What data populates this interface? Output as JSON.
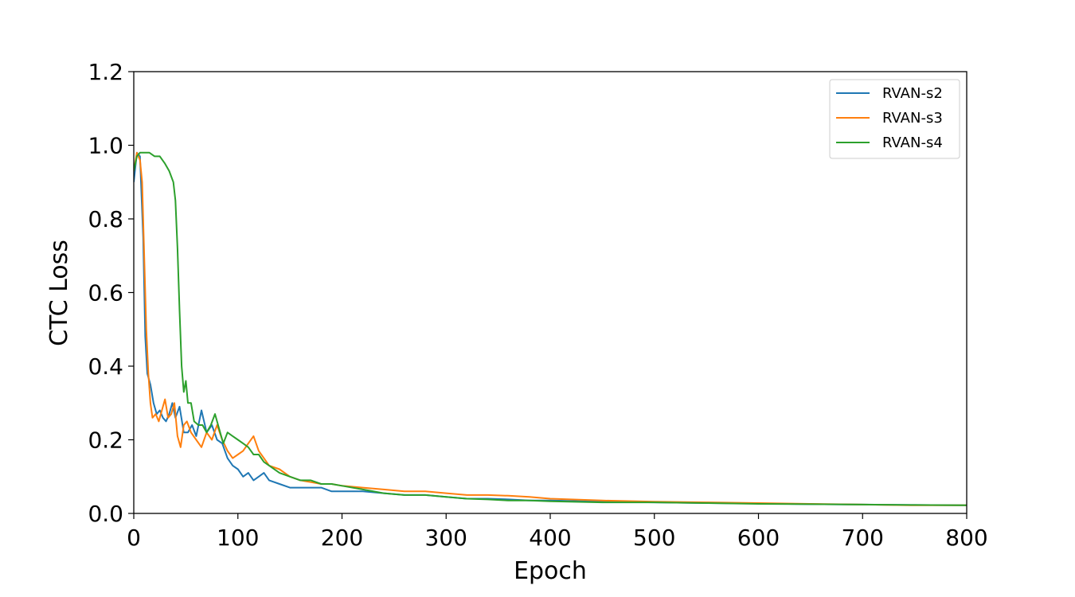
{
  "chart_data": {
    "type": "line",
    "title": "",
    "xlabel": "Epoch",
    "ylabel": "CTC Loss",
    "xlim": [
      0,
      800
    ],
    "ylim": [
      0,
      1.2
    ],
    "xticks": [
      0,
      100,
      200,
      300,
      400,
      500,
      600,
      700,
      800
    ],
    "yticks": [
      0.0,
      0.2,
      0.4,
      0.6,
      0.8,
      1.0,
      1.2
    ],
    "xtick_labels": [
      "0",
      "100",
      "200",
      "300",
      "400",
      "500",
      "600",
      "700",
      "800"
    ],
    "ytick_labels": [
      "0.0",
      "0.2",
      "0.4",
      "0.6",
      "0.8",
      "1.0",
      "1.2"
    ],
    "grid": false,
    "legend_position": "top-right",
    "series": [
      {
        "name": "RVAN-s2",
        "color": "#1f77b4",
        "x": [
          0,
          3,
          6,
          9,
          11,
          13,
          16,
          19,
          22,
          25,
          28,
          31,
          34,
          37,
          40,
          44,
          48,
          52,
          56,
          60,
          65,
          70,
          75,
          80,
          85,
          90,
          95,
          100,
          105,
          110,
          115,
          120,
          125,
          130,
          140,
          150,
          160,
          170,
          180,
          190,
          200,
          220,
          240,
          260,
          280,
          300,
          320,
          340,
          360,
          380,
          400,
          450,
          500,
          550,
          600,
          650,
          700,
          750,
          800
        ],
        "y": [
          0.9,
          0.98,
          0.97,
          0.75,
          0.48,
          0.38,
          0.35,
          0.3,
          0.27,
          0.28,
          0.26,
          0.25,
          0.27,
          0.3,
          0.26,
          0.29,
          0.22,
          0.22,
          0.24,
          0.21,
          0.28,
          0.22,
          0.24,
          0.2,
          0.19,
          0.15,
          0.13,
          0.12,
          0.1,
          0.11,
          0.09,
          0.1,
          0.11,
          0.09,
          0.08,
          0.07,
          0.07,
          0.07,
          0.07,
          0.06,
          0.06,
          0.06,
          0.055,
          0.05,
          0.05,
          0.045,
          0.04,
          0.04,
          0.038,
          0.035,
          0.035,
          0.032,
          0.03,
          0.028,
          0.027,
          0.025,
          0.024,
          0.023,
          0.022
        ]
      },
      {
        "name": "RVAN-s3",
        "color": "#ff7f0e",
        "x": [
          0,
          3,
          6,
          8,
          10,
          12,
          14,
          16,
          18,
          21,
          24,
          27,
          30,
          33,
          36,
          39,
          42,
          45,
          48,
          51,
          55,
          60,
          65,
          70,
          75,
          80,
          85,
          90,
          95,
          100,
          105,
          110,
          115,
          120,
          125,
          130,
          140,
          150,
          160,
          170,
          180,
          190,
          200,
          220,
          240,
          260,
          280,
          300,
          320,
          340,
          360,
          380,
          400,
          450,
          500,
          550,
          600,
          650,
          700,
          750,
          800
        ],
        "y": [
          0.93,
          0.98,
          0.96,
          0.9,
          0.7,
          0.5,
          0.38,
          0.3,
          0.26,
          0.27,
          0.25,
          0.28,
          0.31,
          0.26,
          0.27,
          0.3,
          0.21,
          0.18,
          0.24,
          0.25,
          0.22,
          0.2,
          0.18,
          0.22,
          0.2,
          0.24,
          0.2,
          0.17,
          0.15,
          0.16,
          0.17,
          0.19,
          0.21,
          0.17,
          0.15,
          0.13,
          0.12,
          0.1,
          0.09,
          0.085,
          0.08,
          0.08,
          0.075,
          0.07,
          0.065,
          0.06,
          0.06,
          0.055,
          0.05,
          0.05,
          0.048,
          0.045,
          0.04,
          0.035,
          0.032,
          0.03,
          0.028,
          0.026,
          0.024,
          0.022,
          0.022
        ]
      },
      {
        "name": "RVAN-s4",
        "color": "#2ca02c",
        "x": [
          0,
          3,
          6,
          10,
          15,
          20,
          25,
          30,
          34,
          38,
          40,
          42,
          44,
          46,
          48,
          50,
          52,
          55,
          58,
          62,
          66,
          70,
          74,
          78,
          82,
          86,
          90,
          95,
          100,
          105,
          110,
          115,
          120,
          125,
          130,
          140,
          150,
          160,
          170,
          180,
          190,
          200,
          220,
          240,
          260,
          280,
          300,
          320,
          340,
          360,
          380,
          400,
          450,
          500,
          550,
          600,
          650,
          700,
          750,
          800
        ],
        "y": [
          0.93,
          0.97,
          0.98,
          0.98,
          0.98,
          0.97,
          0.97,
          0.95,
          0.93,
          0.9,
          0.85,
          0.72,
          0.55,
          0.4,
          0.33,
          0.36,
          0.3,
          0.3,
          0.25,
          0.24,
          0.24,
          0.22,
          0.24,
          0.27,
          0.23,
          0.19,
          0.22,
          0.21,
          0.2,
          0.19,
          0.18,
          0.16,
          0.16,
          0.14,
          0.13,
          0.11,
          0.1,
          0.09,
          0.09,
          0.08,
          0.08,
          0.075,
          0.065,
          0.055,
          0.05,
          0.05,
          0.045,
          0.04,
          0.038,
          0.035,
          0.035,
          0.033,
          0.03,
          0.03,
          0.028,
          0.026,
          0.025,
          0.024,
          0.023,
          0.022
        ]
      }
    ]
  }
}
